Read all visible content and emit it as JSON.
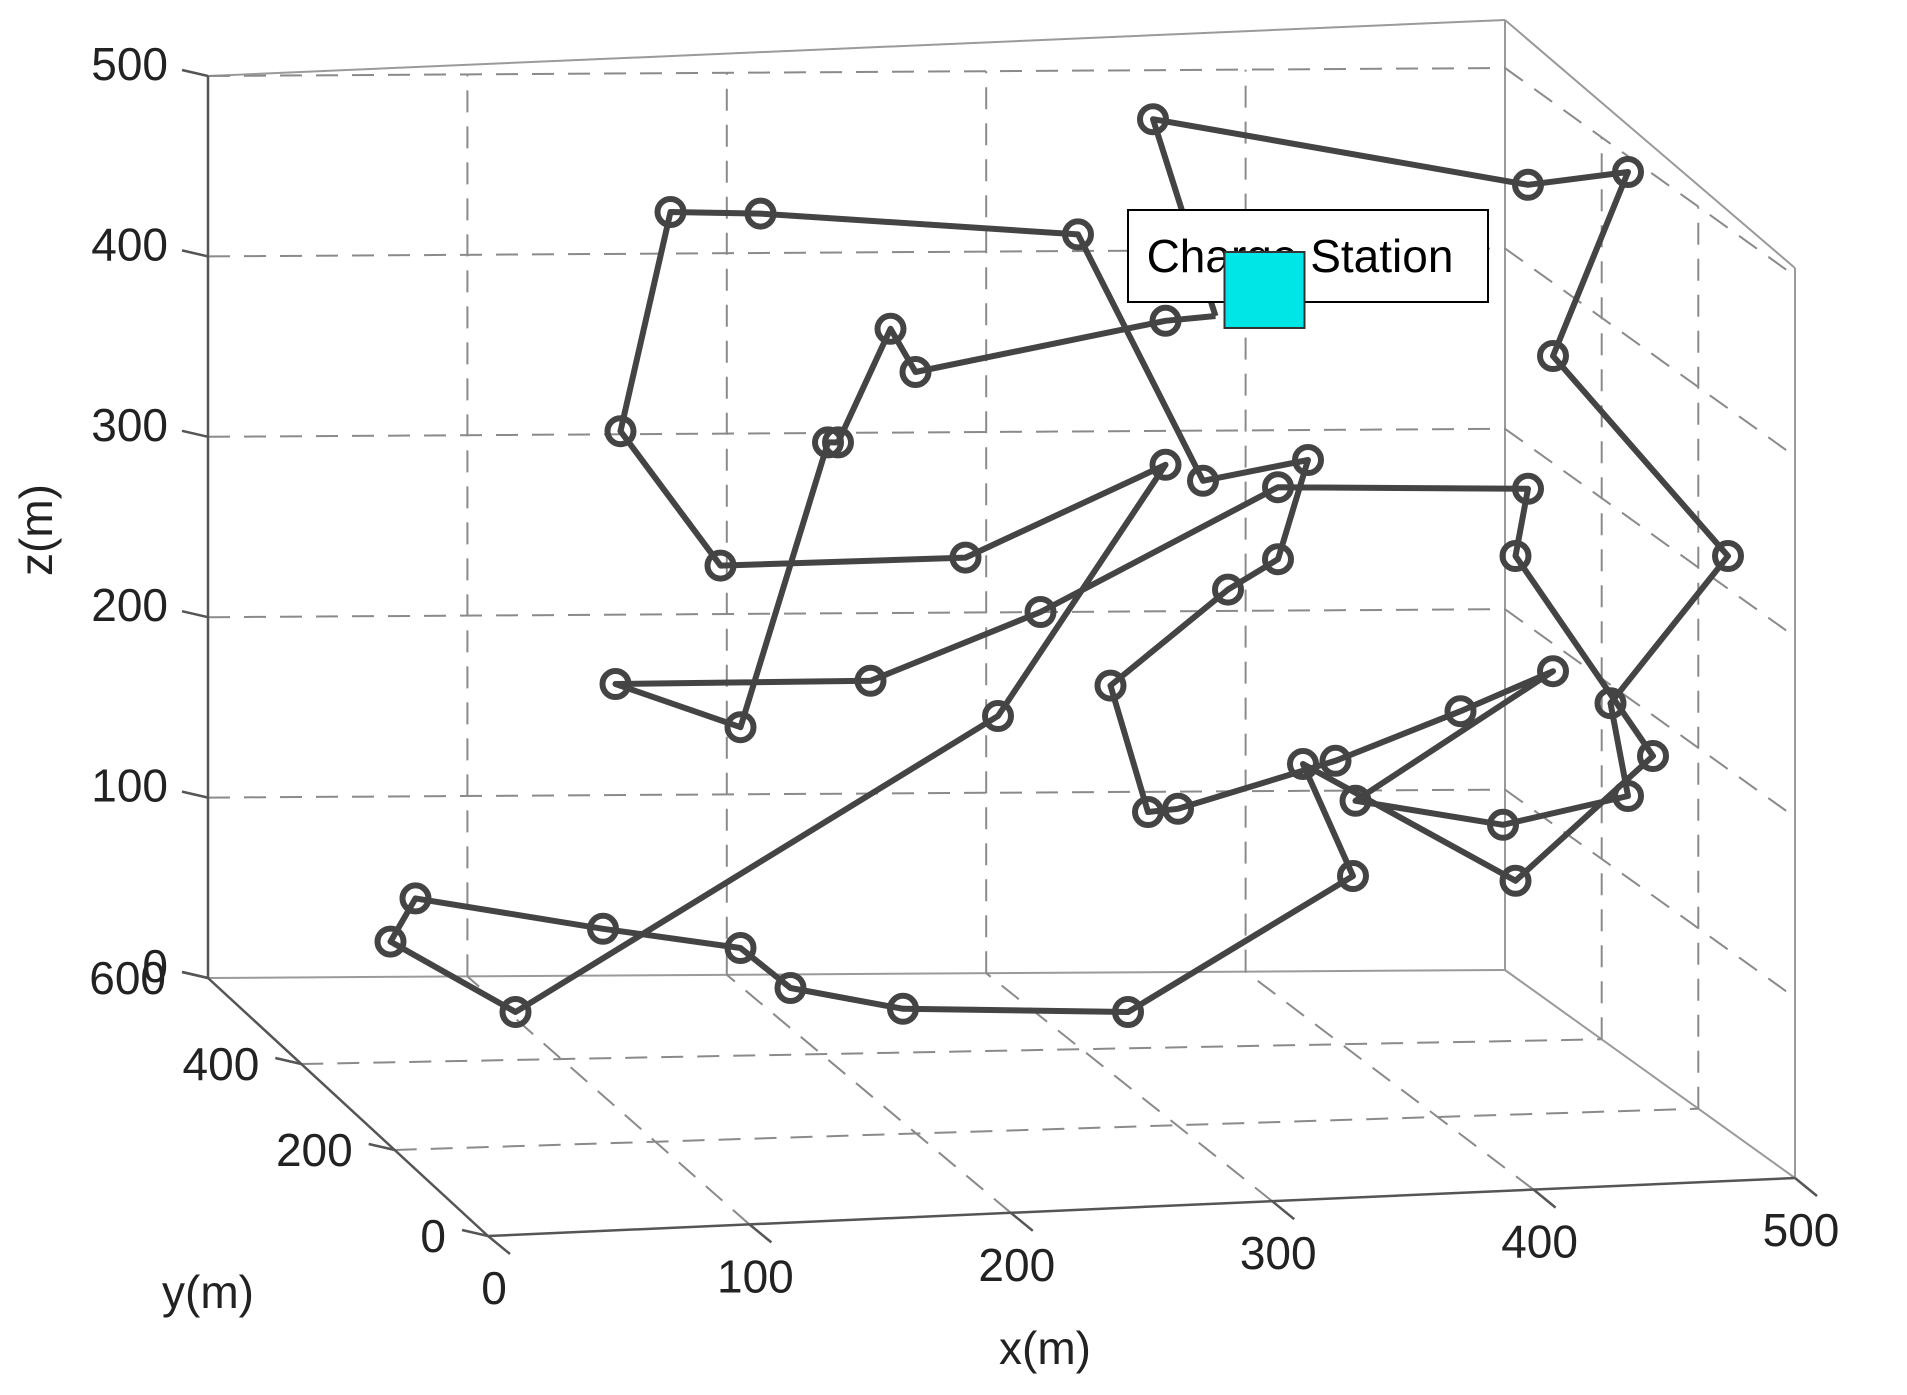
{
  "chart_data": {
    "type": "line",
    "title": "",
    "xlabel": "x(m)",
    "ylabel": "y(m)",
    "zlabel": "z(m)",
    "xlim": [
      0,
      500
    ],
    "ylim": [
      0,
      600
    ],
    "zlim": [
      0,
      500
    ],
    "xticks": [
      "0",
      "100",
      "200",
      "300",
      "400",
      "500"
    ],
    "yticks": [
      "0",
      "200",
      "400",
      "600"
    ],
    "zticks": [
      "0",
      "100",
      "200",
      "300",
      "400",
      "500"
    ],
    "grid": true,
    "annotation": {
      "text": "Charge Station",
      "marker": "square",
      "color": "#00e5e5"
    },
    "line_color": "#444444",
    "marker": "circle",
    "route_screen_order": "The route points below are given as projected (x, z) readings along the front plane; the route is drawn from the charge station and returns to it.",
    "route": [
      {
        "x": 335,
        "z": 355,
        "station": true
      },
      {
        "x": 315,
        "z": 352
      },
      {
        "x": 215,
        "z": 320
      },
      {
        "x": 205,
        "z": 347
      },
      {
        "x": 184,
        "z": 276
      },
      {
        "x": 180,
        "z": 276
      },
      {
        "x": 145,
        "z": 98
      },
      {
        "x": 95,
        "z": 125
      },
      {
        "x": 197,
        "z": 127
      },
      {
        "x": 265,
        "z": 170
      },
      {
        "x": 360,
        "z": 248
      },
      {
        "x": 460,
        "z": 247
      },
      {
        "x": 455,
        "z": 205
      },
      {
        "x": 510,
        "z": 80
      },
      {
        "x": 455,
        "z": 2
      },
      {
        "x": 370,
        "z": 75
      },
      {
        "x": 390,
        "z": 5
      },
      {
        "x": 300,
        "z": -80
      },
      {
        "x": 210,
        "z": -78
      },
      {
        "x": 165,
        "z": -65
      },
      {
        "x": 145,
        "z": -40
      },
      {
        "x": 90,
        "z": -28
      },
      {
        "x": 15,
        "z": -9
      },
      {
        "x": 5,
        "z": -36
      },
      {
        "x": 55,
        "z": -80
      },
      {
        "x": 248,
        "z": 105
      },
      {
        "x": 315,
        "z": 262
      },
      {
        "x": 235,
        "z": 204
      },
      {
        "x": 137,
        "z": 199
      },
      {
        "x": 97,
        "z": 283
      },
      {
        "x": 117,
        "z": 420
      },
      {
        "x": 153,
        "z": 419
      },
      {
        "x": 280,
        "z": 406
      },
      {
        "x": 330,
        "z": 252
      },
      {
        "x": 372,
        "z": 265
      },
      {
        "x": 360,
        "z": 203
      },
      {
        "x": 340,
        "z": 184
      },
      {
        "x": 293,
        "z": 124
      },
      {
        "x": 308,
        "z": 45
      },
      {
        "x": 320,
        "z": 47
      },
      {
        "x": 383,
        "z": 77
      },
      {
        "x": 433,
        "z": 108
      },
      {
        "x": 470,
        "z": 133
      },
      {
        "x": 391,
        "z": 52
      },
      {
        "x": 450,
        "z": 37
      },
      {
        "x": 500,
        "z": 55
      },
      {
        "x": 493,
        "z": 113
      },
      {
        "x": 540,
        "z": 205
      },
      {
        "x": 470,
        "z": 330
      },
      {
        "x": 500,
        "z": 445
      },
      {
        "x": 460,
        "z": 437
      },
      {
        "x": 310,
        "z": 478
      },
      {
        "x": 335,
        "z": 355,
        "station": true
      }
    ]
  }
}
